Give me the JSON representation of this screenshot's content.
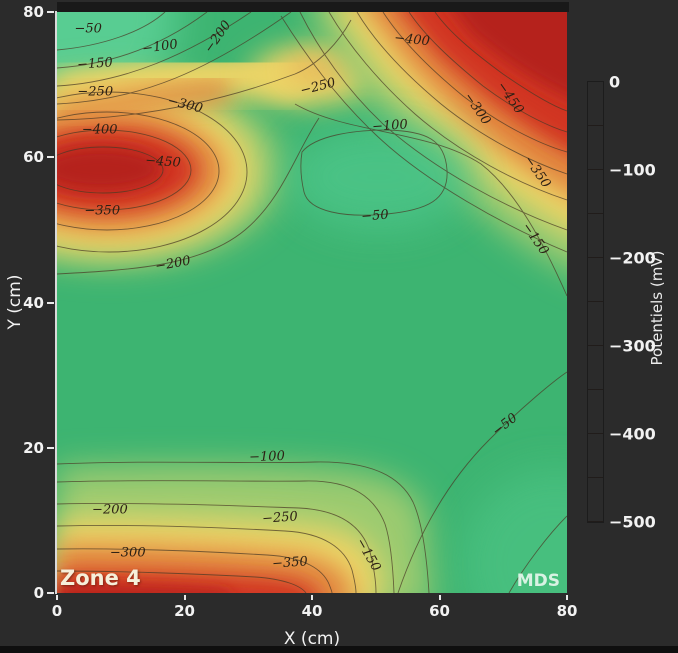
{
  "figure": {
    "background": "#2b2b2b",
    "footer_bar_color": "#0f0f0f"
  },
  "chart_data": {
    "type": "heatmap",
    "subtype": "filled-contour-map",
    "title": "",
    "xlabel": "X (cm)",
    "ylabel": "Y (cm)",
    "x_range": [
      0,
      80
    ],
    "y_range": [
      0,
      80
    ],
    "x_ticks": [
      0,
      20,
      40,
      60,
      80
    ],
    "y_ticks": [
      0,
      20,
      40,
      60,
      80
    ],
    "grid": false,
    "contour_interval_mV": 50,
    "contour_levels_mV": [
      -50,
      -100,
      -150,
      -200,
      -250,
      -300,
      -350,
      -400,
      -450
    ],
    "palette": {
      "high_green": "#5ecf97",
      "base_green": "#3db471",
      "yellow": "#ecd466",
      "orange": "#e2873f",
      "red": "#d13420",
      "deep_red": "#b5241a",
      "contour_line": "#4a3a26"
    },
    "colorbar": {
      "title": "Potentiels (mV)",
      "position": "right",
      "range_mV": [
        0,
        -500
      ],
      "tick_values": [
        0,
        -100,
        -200,
        -300,
        -400,
        -500
      ],
      "tick_labels": [
        "0",
        "−100",
        "−200",
        "−300",
        "−400",
        "−500"
      ],
      "top_color": "#5ecf97",
      "mid_color": "#ecd466",
      "bottom_color": "#9e1f13"
    },
    "annotations": [
      {
        "text": "Zone 4",
        "corner": "bottom-left",
        "color": "#f6efda"
      },
      {
        "text": "MDS",
        "corner": "bottom-right",
        "color": "#d8f2e3"
      }
    ],
    "extrema_estimated": {
      "minima_mV": [
        {
          "x_cm": 9,
          "y_cm": 59,
          "value": -475
        },
        {
          "x_cm": 72,
          "y_cm": 79,
          "value": -500
        },
        {
          "x_cm": 12,
          "y_cm": 1,
          "value": -420
        }
      ],
      "maxima_mV": [
        {
          "x_cm": 49,
          "y_cm": 58,
          "value": -40
        },
        {
          "x_cm": 2,
          "y_cm": 79,
          "value": -30
        },
        {
          "x_cm": 70,
          "y_cm": 10,
          "value": -40
        }
      ],
      "saddle_mV": {
        "x_cm": 40,
        "y_cm": 71,
        "value": -270
      }
    },
    "contour_labels": [
      {
        "label": "−50",
        "x_cm": 4.9,
        "y_cm": 77.7,
        "rot": 0
      },
      {
        "label": "−100",
        "x_cm": 16.2,
        "y_cm": 75.2,
        "rot": -8
      },
      {
        "label": "−150",
        "x_cm": 6.0,
        "y_cm": 72.9,
        "rot": -4
      },
      {
        "label": "−200",
        "x_cm": 25.3,
        "y_cm": 76.6,
        "rot": -55
      },
      {
        "label": "−250",
        "x_cm": 6.0,
        "y_cm": 69.0,
        "rot": 0
      },
      {
        "label": "−300",
        "x_cm": 20.1,
        "y_cm": 67.2,
        "rot": 14
      },
      {
        "label": "−250",
        "x_cm": 40.9,
        "y_cm": 69.7,
        "rot": -14
      },
      {
        "label": "−400",
        "x_cm": 6.7,
        "y_cm": 63.8,
        "rot": 0
      },
      {
        "label": "−450",
        "x_cm": 16.6,
        "y_cm": 59.4,
        "rot": 4
      },
      {
        "label": "−350",
        "x_cm": 7.1,
        "y_cm": 52.6,
        "rot": 0
      },
      {
        "label": "−200",
        "x_cm": 18.2,
        "y_cm": 45.3,
        "rot": -10
      },
      {
        "label": "−400",
        "x_cm": 55.7,
        "y_cm": 76.2,
        "rot": 6
      },
      {
        "label": "−450",
        "x_cm": 71.1,
        "y_cm": 68.1,
        "rot": 55
      },
      {
        "label": "−300",
        "x_cm": 65.9,
        "y_cm": 66.6,
        "rot": 55
      },
      {
        "label": "−100",
        "x_cm": 52.3,
        "y_cm": 64.3,
        "rot": -4
      },
      {
        "label": "−350",
        "x_cm": 75.3,
        "y_cm": 58.0,
        "rot": 55
      },
      {
        "label": "−150",
        "x_cm": 75.0,
        "y_cm": 48.7,
        "rot": 55
      },
      {
        "label": "−50",
        "x_cm": 49.9,
        "y_cm": 51.9,
        "rot": -4
      },
      {
        "label": "−50",
        "x_cm": 70.3,
        "y_cm": 23.1,
        "rot": -38
      },
      {
        "label": "−100",
        "x_cm": 32.9,
        "y_cm": 18.7,
        "rot": -2
      },
      {
        "label": "−200",
        "x_cm": 8.3,
        "y_cm": 11.4,
        "rot": 0
      },
      {
        "label": "−250",
        "x_cm": 35.0,
        "y_cm": 10.3,
        "rot": -4
      },
      {
        "label": "−300",
        "x_cm": 11.1,
        "y_cm": 5.5,
        "rot": 0
      },
      {
        "label": "−350",
        "x_cm": 36.5,
        "y_cm": 4.1,
        "rot": -4
      },
      {
        "label": "−150",
        "x_cm": 48.8,
        "y_cm": 5.2,
        "rot": 60
      }
    ]
  }
}
